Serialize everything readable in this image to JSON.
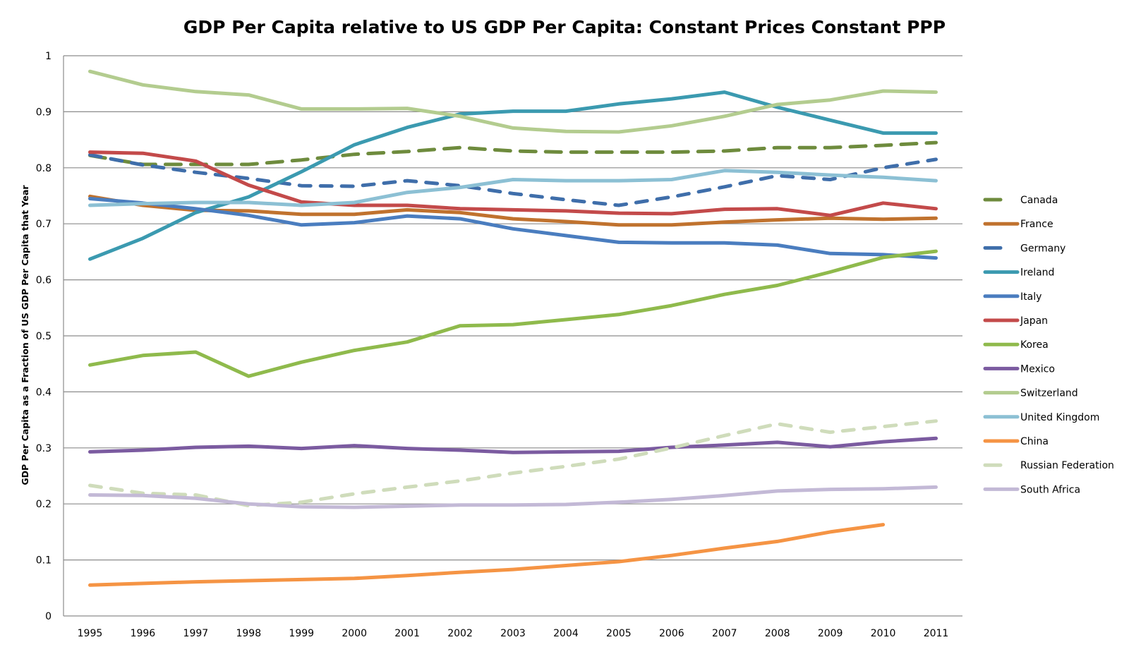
{
  "chart_data": {
    "type": "line",
    "title": "GDP Per Capita relative to US GDP Per Capita: Constant Prices Constant PPP",
    "xlabel": "",
    "ylabel": "GDP Per Capita as a Fraction of US GDP Per Capita that Year",
    "ylim": [
      0,
      1
    ],
    "yticks": [
      "0",
      "0.1",
      "0.2",
      "0.3",
      "0.4",
      "0.5",
      "0.6",
      "0.7",
      "0.8",
      "0.9",
      "1"
    ],
    "ytick_values": [
      0,
      0.1,
      0.2,
      0.3,
      0.4,
      0.5,
      0.6,
      0.7,
      0.8,
      0.9,
      1.0
    ],
    "grid": true,
    "legend_position": "right",
    "categories": [
      "1995",
      "1996",
      "1997",
      "1998",
      "1999",
      "2000",
      "2001",
      "2002",
      "2003",
      "2004",
      "2005",
      "2006",
      "2007",
      "2008",
      "2009",
      "2010",
      "2011"
    ],
    "series": [
      {
        "name": "Canada",
        "color": "#6e8b3d",
        "dashed": true,
        "values": [
          0.822,
          0.806,
          0.806,
          0.806,
          0.814,
          0.824,
          0.829,
          0.836,
          0.83,
          0.828,
          0.828,
          0.828,
          0.83,
          0.836,
          0.836,
          0.84,
          0.845
        ]
      },
      {
        "name": "France",
        "color": "#c0722e",
        "dashed": false,
        "values": [
          0.749,
          0.733,
          0.724,
          0.723,
          0.717,
          0.717,
          0.725,
          0.72,
          0.709,
          0.704,
          0.698,
          0.698,
          0.703,
          0.707,
          0.71,
          0.708,
          0.71
        ]
      },
      {
        "name": "Germany",
        "color": "#3f6eaa",
        "dashed": true,
        "values": [
          0.823,
          0.805,
          0.792,
          0.781,
          0.768,
          0.767,
          0.777,
          0.768,
          0.754,
          0.743,
          0.733,
          0.748,
          0.766,
          0.786,
          0.779,
          0.8,
          0.815
        ]
      },
      {
        "name": "Ireland",
        "color": "#3b9ab0",
        "dashed": false,
        "values": [
          0.637,
          0.674,
          0.72,
          0.748,
          0.793,
          0.841,
          0.872,
          0.896,
          0.901,
          0.901,
          0.914,
          0.923,
          0.935,
          0.908,
          0.885,
          0.862,
          0.862
        ]
      },
      {
        "name": "Italy",
        "color": "#4a7dbf",
        "dashed": false,
        "values": [
          0.745,
          0.737,
          0.727,
          0.715,
          0.698,
          0.702,
          0.714,
          0.709,
          0.691,
          0.679,
          0.667,
          0.666,
          0.666,
          0.662,
          0.647,
          0.645,
          0.639
        ]
      },
      {
        "name": "Japan",
        "color": "#c34a4a",
        "dashed": false,
        "values": [
          0.828,
          0.826,
          0.812,
          0.769,
          0.739,
          0.733,
          0.733,
          0.727,
          0.725,
          0.723,
          0.719,
          0.718,
          0.726,
          0.727,
          0.715,
          0.737,
          0.727
        ]
      },
      {
        "name": "Korea",
        "color": "#8fba4c",
        "dashed": false,
        "values": [
          0.448,
          0.465,
          0.471,
          0.428,
          0.453,
          0.474,
          0.489,
          0.518,
          0.52,
          0.529,
          0.538,
          0.554,
          0.574,
          0.59,
          0.614,
          0.64,
          0.651
        ]
      },
      {
        "name": "Mexico",
        "color": "#7b5ba0",
        "dashed": false,
        "values": [
          0.293,
          0.296,
          0.301,
          0.303,
          0.299,
          0.304,
          0.299,
          0.296,
          0.292,
          0.293,
          0.294,
          0.301,
          0.305,
          0.31,
          0.302,
          0.311,
          0.317
        ]
      },
      {
        "name": "Switzerland",
        "color": "#b3cc8f",
        "dashed": false,
        "values": [
          0.972,
          0.948,
          0.936,
          0.93,
          0.905,
          0.905,
          0.906,
          0.892,
          0.871,
          0.865,
          0.864,
          0.875,
          0.892,
          0.913,
          0.921,
          0.937,
          0.935
        ]
      },
      {
        "name": "United Kingdom",
        "color": "#8cc0d4",
        "dashed": false,
        "values": [
          0.733,
          0.736,
          0.738,
          0.738,
          0.733,
          0.738,
          0.756,
          0.765,
          0.779,
          0.777,
          0.777,
          0.779,
          0.795,
          0.792,
          0.787,
          0.783,
          0.777
        ]
      },
      {
        "name": "China",
        "color": "#f59444",
        "dashed": false,
        "values": [
          0.055,
          0.058,
          0.061,
          0.063,
          0.065,
          0.067,
          0.072,
          0.078,
          0.083,
          0.09,
          0.097,
          0.108,
          0.121,
          0.133,
          0.15,
          0.163,
          null
        ]
      },
      {
        "name": "Russian Federation",
        "color": "#cfdcbb",
        "dashed": true,
        "values": [
          0.233,
          0.219,
          0.216,
          0.197,
          0.203,
          0.218,
          0.23,
          0.241,
          0.255,
          0.267,
          0.28,
          0.3,
          0.322,
          0.343,
          0.328,
          0.338,
          0.348
        ]
      },
      {
        "name": "South Africa",
        "color": "#c3b9d6",
        "dashed": false,
        "values": [
          0.216,
          0.215,
          0.21,
          0.2,
          0.195,
          0.194,
          0.196,
          0.198,
          0.198,
          0.199,
          0.203,
          0.208,
          0.215,
          0.223,
          0.226,
          0.227,
          0.23
        ]
      }
    ]
  }
}
